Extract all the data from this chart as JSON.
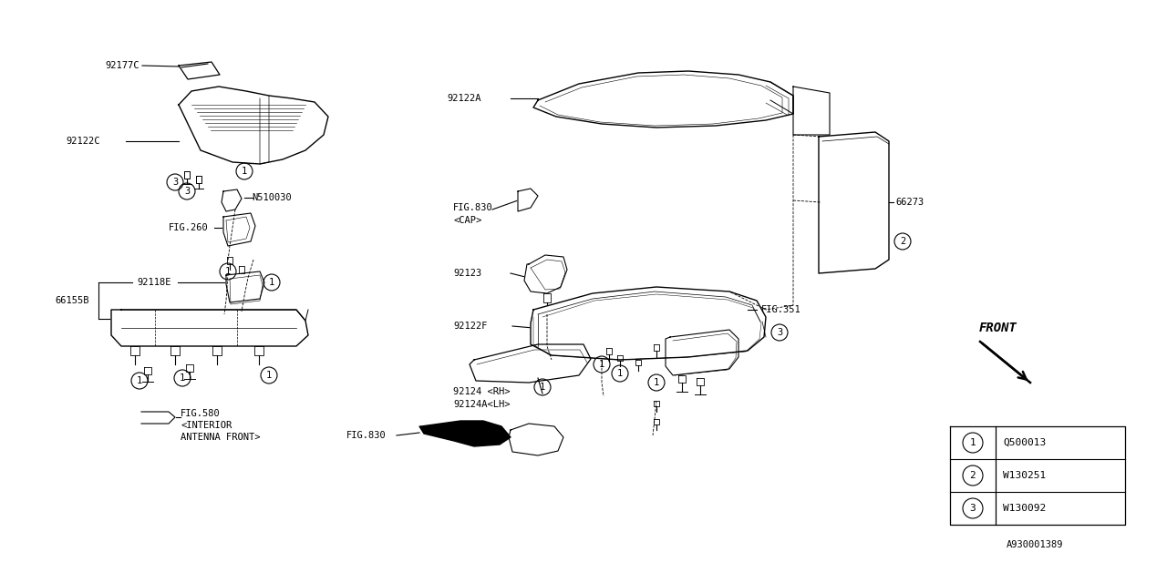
{
  "bg_color": "#FFFFFF",
  "line_color": "#000000",
  "diagram_id": "A930001389",
  "legend_items": [
    {
      "num": "1",
      "code": "Q500013"
    },
    {
      "num": "2",
      "code": "W130251"
    },
    {
      "num": "3",
      "code": "W130092"
    }
  ],
  "figsize": [
    12.8,
    6.4
  ],
  "dpi": 100,
  "font": "monospace",
  "font_size": 7.5
}
